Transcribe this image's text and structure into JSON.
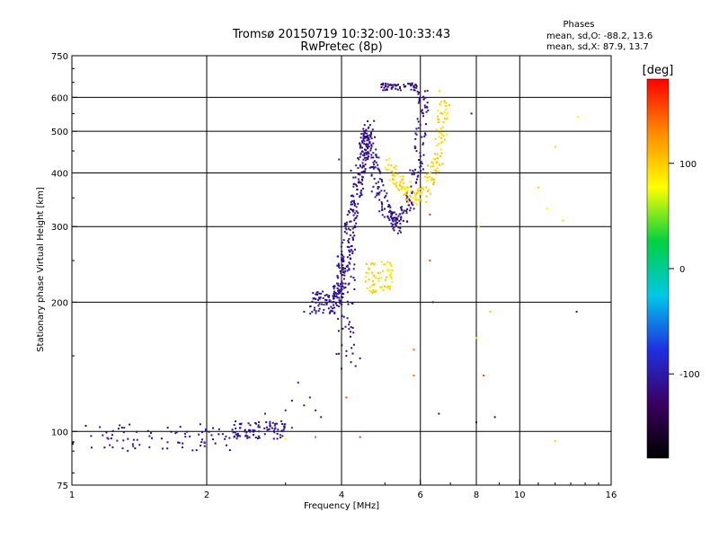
{
  "chart_data": {
    "type": "scatter",
    "title": "Tromsø 20150719 10:32:00-10:33:43",
    "subtitle": "RwPretec (8p)",
    "xlabel": "Frequency [MHz]",
    "ylabel": "Stationary phase Virtual Height [km]",
    "x_scale": "log",
    "y_scale": "log",
    "xlim": [
      1,
      16
    ],
    "ylim": [
      75,
      750
    ],
    "x_ticks": [
      1,
      2,
      4,
      6,
      8,
      10,
      16
    ],
    "y_ticks": [
      75,
      100,
      200,
      300,
      400,
      500,
      600,
      750
    ],
    "x_gridlines": [
      2,
      4,
      6,
      8,
      10
    ],
    "y_gridlines": [
      100,
      200,
      300,
      400,
      500,
      600
    ],
    "stats": {
      "heading": "Phases",
      "line_o": "mean, sd,O: -88.2, 13.6",
      "line_x": "mean, sd,X:  87.9, 13.7"
    },
    "colorbar": {
      "label": "[deg]",
      "range": [
        -180,
        180
      ],
      "ticks": [
        100,
        0,
        -100
      ],
      "palette": [
        "#000000",
        "#3a0060",
        "#1f2fe0",
        "#00c8e8",
        "#00d040",
        "#ffff00",
        "#ff8c00",
        "#ff0000"
      ]
    },
    "series": [
      {
        "group": "low-band echo",
        "phase": -110,
        "segments": [
          [
            1.0,
            2.3,
            97,
            7
          ],
          [
            2.3,
            3.0,
            101,
            5
          ]
        ],
        "count": 170
      },
      {
        "group": "scattered low echoes",
        "phase": -100,
        "points": [
          [
            2.7,
            110
          ],
          [
            3.0,
            112
          ],
          [
            3.1,
            118
          ],
          [
            3.2,
            130
          ],
          [
            3.3,
            115
          ],
          [
            3.4,
            120
          ],
          [
            3.5,
            112
          ],
          [
            3.6,
            108
          ],
          [
            3.1,
            102
          ]
        ]
      },
      {
        "group": "O-trace lower",
        "phase": -110,
        "segments": [
          [
            3.4,
            3.9,
            200,
            12
          ],
          [
            3.9,
            4.3,
            210,
            60
          ]
        ],
        "count": 140
      },
      {
        "group": "O-trace spine",
        "phase": -110,
        "curve": [
          [
            3.9,
            200
          ],
          [
            4.1,
            260
          ],
          [
            4.3,
            350
          ],
          [
            4.5,
            450
          ],
          [
            4.6,
            520
          ]
        ],
        "count": 260
      },
      {
        "group": "O-trace cusp",
        "phase": -110,
        "curve": [
          [
            4.6,
            480
          ],
          [
            4.8,
            380
          ],
          [
            5.0,
            330
          ],
          [
            5.3,
            300
          ],
          [
            5.7,
            340
          ],
          [
            6.0,
            450
          ],
          [
            6.1,
            620
          ]
        ],
        "count": 240
      },
      {
        "group": "O-trace top",
        "phase": -115,
        "segments": [
          [
            4.9,
            5.9,
            635,
            12
          ]
        ],
        "count": 60
      },
      {
        "group": "O sporadic",
        "phase": -110,
        "points": [
          [
            3.3,
            190
          ],
          [
            4.0,
            140
          ],
          [
            4.1,
            150
          ],
          [
            4.2,
            145
          ],
          [
            4.3,
            142
          ],
          [
            4.4,
            148
          ],
          [
            4.5,
            400
          ],
          [
            4.2,
            405
          ],
          [
            3.95,
            430
          ],
          [
            6.6,
            110
          ],
          [
            8.0,
            105
          ],
          [
            8.8,
            108
          ],
          [
            13.4,
            190
          ],
          [
            6.4,
            200
          ],
          [
            7.8,
            550
          ]
        ]
      },
      {
        "group": "X-trace lower",
        "phase": 95,
        "segments": [
          [
            4.5,
            5.2,
            230,
            20
          ]
        ],
        "count": 70
      },
      {
        "group": "X-trace upper",
        "phase": 95,
        "curve": [
          [
            5.1,
            420
          ],
          [
            5.4,
            380
          ],
          [
            5.8,
            350
          ],
          [
            6.2,
            360
          ],
          [
            6.5,
            420
          ],
          [
            6.7,
            500
          ],
          [
            6.8,
            600
          ]
        ],
        "count": 180
      },
      {
        "group": "X sporadic",
        "phase": 90,
        "points": [
          [
            8.1,
            300
          ],
          [
            8.6,
            190
          ],
          [
            11.0,
            370
          ],
          [
            11.5,
            330
          ],
          [
            12.5,
            310
          ],
          [
            12.0,
            460
          ],
          [
            13.5,
            540
          ],
          [
            12.0,
            95
          ],
          [
            3.0,
            96
          ],
          [
            8.0,
            165
          ]
        ]
      },
      {
        "group": "red/orange outliers",
        "phase": 150,
        "points": [
          [
            6.3,
            320
          ],
          [
            6.3,
            250
          ],
          [
            4.1,
            120
          ],
          [
            5.8,
            155
          ],
          [
            8.3,
            135
          ],
          [
            3.5,
            97
          ],
          [
            4.4,
            97
          ],
          [
            5.8,
            135
          ]
        ]
      }
    ]
  }
}
